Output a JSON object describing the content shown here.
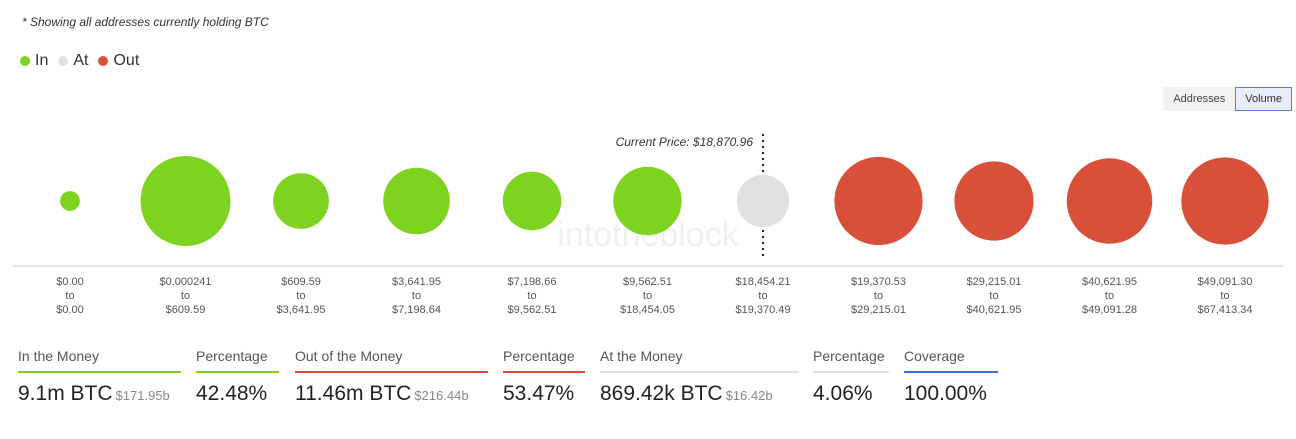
{
  "note": "* Showing all addresses currently holding BTC",
  "legend": [
    {
      "label": "In",
      "color": "#7ed321"
    },
    {
      "label": "At",
      "color": "#e1e1e1"
    },
    {
      "label": "Out",
      "color": "#d9503a"
    }
  ],
  "toggle": {
    "addresses": "Addresses",
    "volume": "Volume",
    "active": "Volume"
  },
  "watermark": "intotheblock",
  "chart_data": {
    "type": "bubble",
    "title": "",
    "current_price_label": "Current Price: $18,870.96",
    "current_price": 18870.96,
    "colors": {
      "In": "#7ed321",
      "At": "#e1e1e1",
      "Out": "#d9503a"
    },
    "buckets": [
      {
        "low": "$0.00",
        "to": "to",
        "high": "$0.00",
        "status": "In",
        "relative_size": 0.22
      },
      {
        "low": "$0.000241",
        "to": "to",
        "high": "$609.59",
        "status": "In",
        "relative_size": 1.0
      },
      {
        "low": "$609.59",
        "to": "to",
        "high": "$3,641.95",
        "status": "In",
        "relative_size": 0.62
      },
      {
        "low": "$3,641.95",
        "to": "to",
        "high": "$7,198.64",
        "status": "In",
        "relative_size": 0.74
      },
      {
        "low": "$7,198.66",
        "to": "to",
        "high": "$9,562.51",
        "status": "In",
        "relative_size": 0.65
      },
      {
        "low": "$9,562.51",
        "to": "to",
        "high": "$18,454.05",
        "status": "In",
        "relative_size": 0.76
      },
      {
        "low": "$18,454.21",
        "to": "to",
        "high": "$19,370.49",
        "status": "At",
        "relative_size": 0.58
      },
      {
        "low": "$19,370.53",
        "to": "to",
        "high": "$29,215.01",
        "status": "Out",
        "relative_size": 0.98
      },
      {
        "low": "$29,215.01",
        "to": "to",
        "high": "$40,621.95",
        "status": "Out",
        "relative_size": 0.88
      },
      {
        "low": "$40,621.95",
        "to": "to",
        "high": "$49,091.28",
        "status": "Out",
        "relative_size": 0.95
      },
      {
        "low": "$49,091.30",
        "to": "to",
        "high": "$67,413.34",
        "status": "Out",
        "relative_size": 0.97
      }
    ]
  },
  "stats": [
    {
      "label": "In the Money",
      "value": "9.1m BTC",
      "sub": "$171.95b",
      "color": "#7ed321"
    },
    {
      "label": "Percentage",
      "value": "42.48%",
      "sub": "",
      "color": "#7ed321"
    },
    {
      "label": "Out of the Money",
      "value": "11.46m BTC",
      "sub": "$216.44b",
      "color": "#d9503a"
    },
    {
      "label": "Percentage",
      "value": "53.47%",
      "sub": "",
      "color": "#d9503a"
    },
    {
      "label": "At the Money",
      "value": "869.42k BTC",
      "sub": "$16.42b",
      "color": "#e1e1e1"
    },
    {
      "label": "Percentage",
      "value": "4.06%",
      "sub": "",
      "color": "#e1e1e1"
    },
    {
      "label": "Coverage",
      "value": "100.00%",
      "sub": "",
      "color": "#3b73e0"
    }
  ]
}
